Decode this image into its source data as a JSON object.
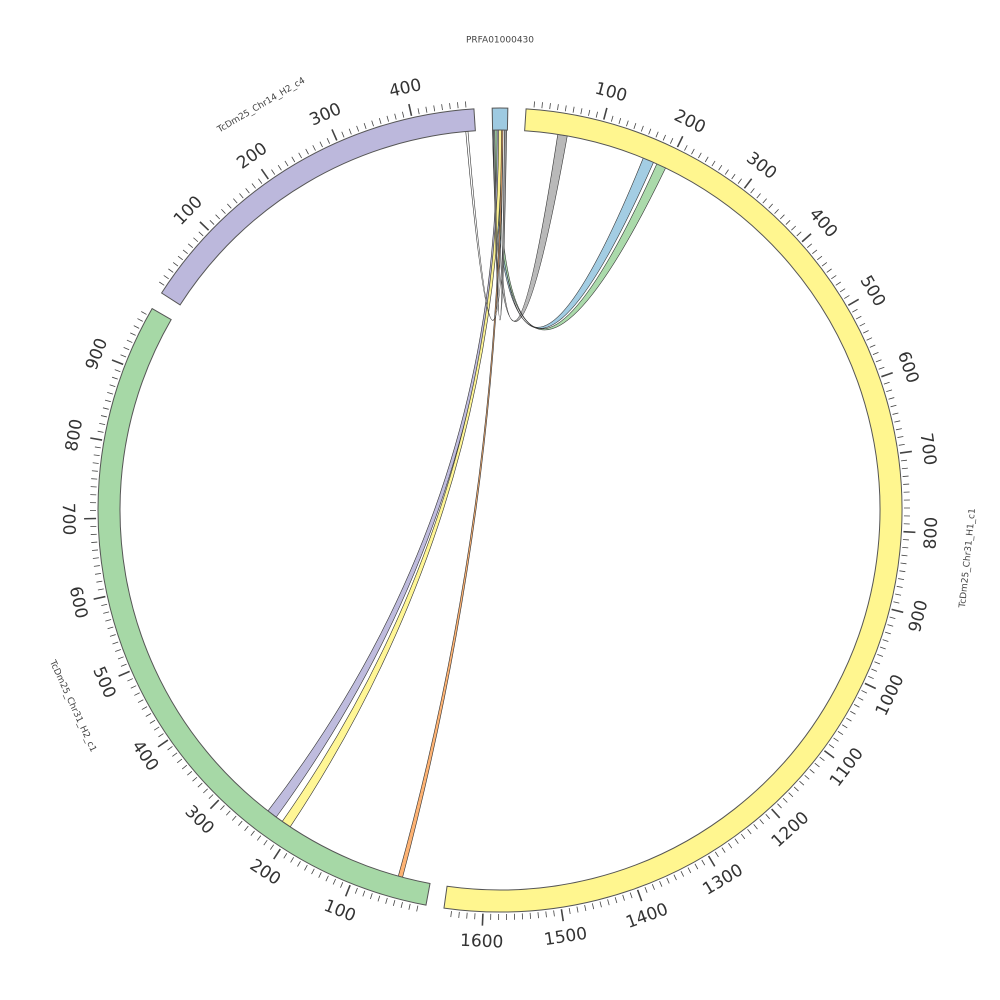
{
  "diagram": {
    "type": "circos",
    "units": "bp",
    "tick_minor_step": 10,
    "tick_label_step": 100,
    "segments": [
      {
        "id": "PRFA",
        "name": "PRFA01000430",
        "length": 20,
        "color": "#9ecae1",
        "show_ticks": false
      },
      {
        "id": "H1",
        "name": "TcDm25_Chr31_H1_c1",
        "length": 1650,
        "color": "#fff68f",
        "show_ticks": true
      },
      {
        "id": "H2c1",
        "name": "TcDm25_Chr31_H2_c1",
        "length": 980,
        "color": "#a6d8a6",
        "show_ticks": true
      },
      {
        "id": "Chr14",
        "name": "TcDm25_Chr14_H2_c4",
        "length": 480,
        "color": "#bcb8dc",
        "show_ticks": true
      }
    ],
    "ribbons": [
      {
        "from_segment": "PRFA",
        "from": [
          0,
          7
        ],
        "to_segment": "H1",
        "to": [
          45,
          58
        ],
        "color": "#b5b5b5"
      },
      {
        "from_segment": "PRFA",
        "from": [
          0,
          5
        ],
        "to_segment": "H1",
        "to": [
          165,
          180
        ],
        "color": "#9ecae1"
      },
      {
        "from_segment": "PRFA",
        "from": [
          2,
          7
        ],
        "to_segment": "H1",
        "to": [
          185,
          198
        ],
        "color": "#a6d8a6"
      },
      {
        "from_segment": "PRFA",
        "from": [
          6,
          12
        ],
        "to_segment": "H2c1",
        "to": [
          228,
          242
        ],
        "color": "#bcb8dc"
      },
      {
        "from_segment": "PRFA",
        "from": [
          8,
          13
        ],
        "to_segment": "H2c1",
        "to": [
          205,
          218
        ],
        "color": "#fff68f"
      },
      {
        "from_segment": "PRFA",
        "from": [
          12,
          14
        ],
        "to_segment": "H2c1",
        "to": [
          38,
          44
        ],
        "color": "#fdae6b"
      },
      {
        "from_segment": "PRFA",
        "from": [
          14,
          18
        ],
        "to_segment": "Chr14",
        "to": [
          467,
          470
        ],
        "color": "#ffffff"
      },
      {
        "from_segment": "PRFA",
        "from": [
          16,
          19
        ],
        "to_segment": "PRFA",
        "to": [
          1,
          3
        ],
        "color": "#999999"
      }
    ]
  }
}
